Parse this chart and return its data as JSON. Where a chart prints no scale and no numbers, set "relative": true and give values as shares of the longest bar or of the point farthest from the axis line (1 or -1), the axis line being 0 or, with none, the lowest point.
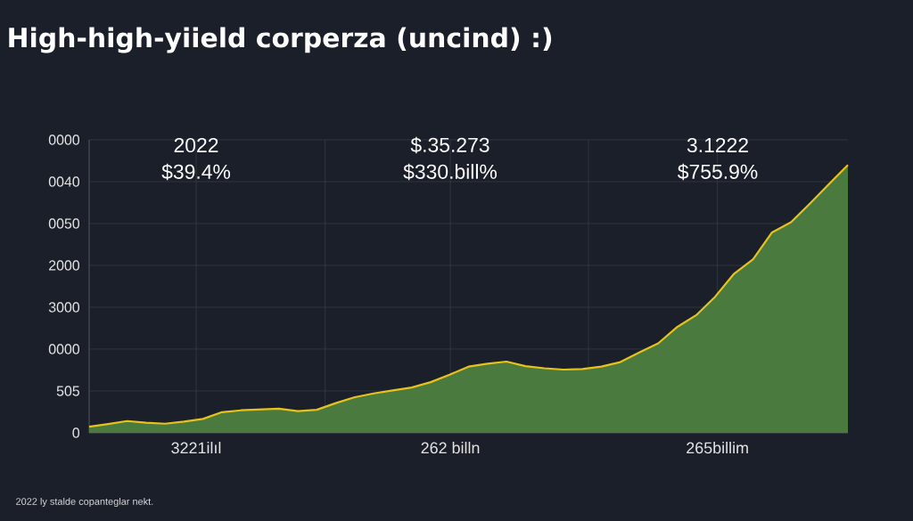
{
  "chart_data": {
    "type": "area",
    "title": "High-high-yiield corperza (uncind) :)",
    "relative": true,
    "annotations": [
      "2022",
      "$39.4%",
      "$.35.273",
      "$330.bill%",
      "3.1222",
      "$755.9%",
      "2022 ly stalde copanteglar nekt.",
      "0",
      "505",
      "0000",
      "3000",
      "2000",
      "0050",
      "0040",
      "0000",
      "3221ilıl",
      "262 billn",
      "265billim"
    ],
    "categories": [
      null,
      null,
      null,
      null,
      null,
      null,
      null,
      null,
      null,
      null,
      null,
      null,
      null,
      null,
      null,
      null,
      null,
      null,
      null,
      null,
      null,
      null,
      null,
      null,
      null,
      null,
      null,
      null,
      null,
      null,
      null,
      null,
      null,
      null,
      null,
      null,
      null,
      null,
      null,
      null,
      null
    ],
    "series": [
      {
        "color": "#4a7a3e",
        "values": [
          0.023,
          0.033,
          0.044,
          0.038,
          0.034,
          0.042,
          0.052,
          0.077,
          0.084,
          0.087,
          0.09,
          0.081,
          0.086,
          0.111,
          0.133,
          0.147,
          0.158,
          0.169,
          0.189,
          0.217,
          0.247,
          0.258,
          0.266,
          0.249,
          0.241,
          0.236,
          0.238,
          0.247,
          0.264,
          0.3,
          0.334,
          0.395,
          0.439,
          0.508,
          0.594,
          0.648,
          0.748,
          0.786,
          0.856,
          0.928,
          1
        ]
      }
    ],
    "grid": true
  }
}
